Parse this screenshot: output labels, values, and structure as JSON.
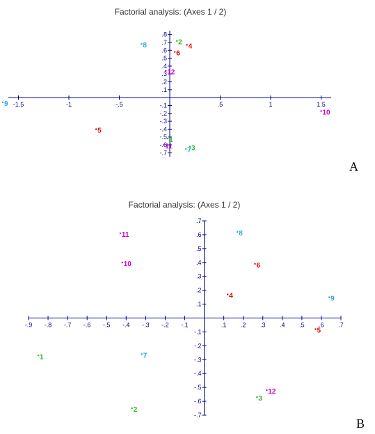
{
  "chart_data": [
    {
      "type": "scatter",
      "panel_letter": "A",
      "title": "Factorial analysis: (Axes 1 / 2)",
      "xlabel": "",
      "ylabel": "",
      "xlim": [
        -1.6,
        1.6
      ],
      "ylim": [
        -0.75,
        0.85
      ],
      "x_ticks": [
        -1.5,
        -1,
        -0.5,
        0.5,
        1,
        1.5
      ],
      "x_tick_labels": [
        "-1.5",
        "-1",
        "-.5",
        ".5",
        "1",
        "1.5"
      ],
      "y_ticks": [
        0.8,
        0.7,
        0.6,
        0.5,
        0.4,
        0.3,
        0.2,
        0.1,
        -0.1,
        -0.2,
        -0.3,
        -0.4,
        -0.5,
        -0.6,
        -0.7
      ],
      "y_tick_labels": [
        ".8",
        ".7",
        ".6",
        ".5",
        ".4",
        ".3",
        ".2",
        ".1",
        "-.1",
        "-.2",
        "-.3",
        "-.4",
        "-.5",
        "-.6",
        "-.7"
      ],
      "grid": false,
      "points": [
        {
          "label": "1",
          "x": -0.02,
          "y": -0.52,
          "color": "#22bb22"
        },
        {
          "label": "2",
          "x": 0.07,
          "y": 0.72,
          "color": "#22bb22"
        },
        {
          "label": "3",
          "x": 0.2,
          "y": -0.62,
          "color": "#22bb22"
        },
        {
          "label": "4",
          "x": 0.17,
          "y": 0.67,
          "color": "#dd0000"
        },
        {
          "label": "5",
          "x": -0.73,
          "y": -0.4,
          "color": "#dd0000"
        },
        {
          "label": "6",
          "x": 0.05,
          "y": 0.58,
          "color": "#dd0000"
        },
        {
          "label": "7",
          "x": 0.16,
          "y": -0.65,
          "color": "#29a3e0"
        },
        {
          "label": "8",
          "x": -0.28,
          "y": 0.68,
          "color": "#29a3e0"
        },
        {
          "label": "9",
          "x": -1.7,
          "y": -0.06,
          "color": "#29a3e0"
        },
        {
          "label": "10",
          "x": 1.5,
          "y": -0.17,
          "color": "#cc00cc"
        },
        {
          "label": "11",
          "x": -0.06,
          "y": -0.6,
          "color": "#cc00cc"
        },
        {
          "label": "12",
          "x": -0.04,
          "y": 0.34,
          "color": "#cc00cc"
        }
      ]
    },
    {
      "type": "scatter",
      "panel_letter": "B",
      "title": "Factorial analysis: (Axes 1 / 2)",
      "xlabel": "",
      "ylabel": "",
      "xlim": [
        -0.9,
        0.7
      ],
      "ylim": [
        -0.7,
        0.7
      ],
      "x_ticks": [
        -0.9,
        -0.8,
        -0.7,
        -0.6,
        -0.5,
        -0.4,
        -0.3,
        -0.2,
        -0.1,
        0.1,
        0.2,
        0.3,
        0.4,
        0.5,
        0.6,
        0.7
      ],
      "x_tick_labels": [
        "-.9",
        "-.8",
        "-.7",
        "-.6",
        "-.5",
        "-.4",
        "-.3",
        "-.2",
        "-.1",
        ".1",
        ".2",
        ".3",
        ".4",
        ".5",
        ".6",
        ".7"
      ],
      "y_ticks": [
        0.7,
        0.6,
        0.5,
        0.4,
        0.3,
        0.2,
        0.1,
        -0.1,
        -0.2,
        -0.3,
        -0.4,
        -0.5,
        -0.6,
        -0.7
      ],
      "y_tick_labels": [
        ".7",
        ".6",
        ".5",
        ".4",
        ".3",
        ".2",
        ".1",
        "-.1",
        "-.2",
        "-.3",
        "-.4",
        "-.5",
        "-.6",
        "-.7"
      ],
      "grid": false,
      "points": [
        {
          "label": "1",
          "x": -0.85,
          "y": -0.27,
          "color": "#22bb22"
        },
        {
          "label": "2",
          "x": -0.37,
          "y": -0.65,
          "color": "#22bb22"
        },
        {
          "label": "3",
          "x": 0.27,
          "y": -0.57,
          "color": "#22bb22"
        },
        {
          "label": "4",
          "x": 0.12,
          "y": 0.17,
          "color": "#dd0000"
        },
        {
          "label": "5",
          "x": 0.57,
          "y": -0.08,
          "color": "#dd0000"
        },
        {
          "label": "6",
          "x": 0.26,
          "y": 0.39,
          "color": "#dd0000"
        },
        {
          "label": "7",
          "x": -0.32,
          "y": -0.26,
          "color": "#29a3e0"
        },
        {
          "label": "8",
          "x": 0.17,
          "y": 0.62,
          "color": "#29a3e0"
        },
        {
          "label": "9",
          "x": 0.64,
          "y": 0.15,
          "color": "#29a3e0"
        },
        {
          "label": "10",
          "x": -0.42,
          "y": 0.4,
          "color": "#cc00cc"
        },
        {
          "label": "11",
          "x": -0.43,
          "y": 0.61,
          "color": "#cc00cc"
        },
        {
          "label": "12",
          "x": 0.32,
          "y": -0.52,
          "color": "#cc00cc"
        }
      ]
    }
  ],
  "colors": {
    "axis": "#00008b",
    "text": "#333333"
  }
}
